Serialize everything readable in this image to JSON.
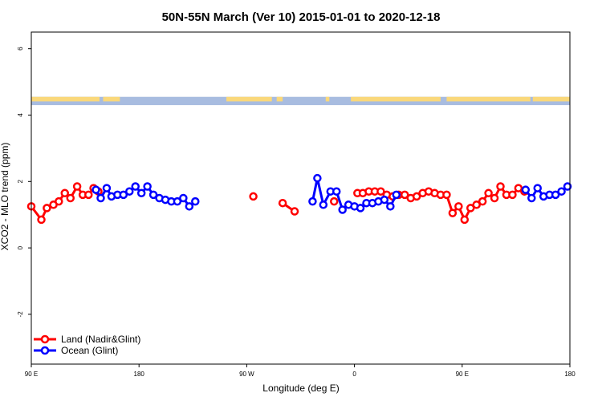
{
  "chart_data": {
    "type": "line",
    "title": "50N-55N March (Ver 10)   2015-01-01 to 2020-12-18",
    "xlabel": "Longitude (deg E)",
    "ylabel": "XCO2 - MLO trend (ppm)",
    "xlim": [
      90,
      540
    ],
    "ylim": [
      -3.5,
      6.5
    ],
    "x_ticks": [
      {
        "value": 90,
        "label": "90 E"
      },
      {
        "value": 180,
        "label": "180"
      },
      {
        "value": 270,
        "label": "90 W"
      },
      {
        "value": 360,
        "label": "0"
      },
      {
        "value": 450,
        "label": "90 E"
      },
      {
        "value": 540,
        "label": "180"
      }
    ],
    "y_ticks": [
      {
        "value": -2,
        "label": "-2"
      },
      {
        "value": 0,
        "label": "0"
      },
      {
        "value": 2,
        "label": "2"
      },
      {
        "value": 4,
        "label": "4"
      },
      {
        "value": 6,
        "label": "6"
      }
    ],
    "grid": false,
    "legend_position": "bottom-left",
    "land_ocean_band": {
      "y_range": [
        4.3,
        4.55
      ],
      "land_color": "#FAD87A",
      "ocean_color": "#A8BCE0"
    },
    "series": [
      {
        "name": "Land (Nadir&Glint)",
        "color": "#FF0000",
        "x": [
          90,
          98.4,
          103,
          108.5,
          113,
          118,
          122.7,
          128.3,
          133,
          137.8,
          142,
          146,
          null,
          275.5,
          null,
          300,
          310,
          null,
          343,
          null,
          362.5,
          367,
          372,
          377,
          382,
          387,
          392,
          397,
          402,
          407,
          412,
          417,
          422,
          427,
          432,
          437,
          442,
          447,
          452,
          457,
          462,
          467,
          472,
          477,
          482,
          487,
          492,
          497,
          502
        ],
        "y": [
          1.25,
          0.85,
          1.2,
          1.3,
          1.4,
          1.65,
          1.5,
          1.85,
          1.6,
          1.6,
          1.8,
          1.7,
          null,
          1.55,
          null,
          1.35,
          1.1,
          null,
          1.4,
          null,
          1.65,
          1.65,
          1.7,
          1.7,
          1.7,
          1.6,
          1.55,
          1.6,
          1.6,
          1.5,
          1.55,
          1.65,
          1.7,
          1.65,
          1.6,
          1.6,
          1.05,
          1.25,
          0.85,
          1.2,
          1.3,
          1.4,
          1.65,
          1.5,
          1.85,
          1.6,
          1.6,
          1.8,
          1.7
        ]
      },
      {
        "name": "Ocean (Glint)",
        "color": "#0000FF",
        "x": [
          144,
          148,
          153,
          157,
          162,
          167,
          172,
          177,
          182,
          187,
          192,
          197,
          202,
          207,
          212,
          217,
          222,
          227,
          null,
          325,
          329,
          334,
          340,
          345,
          350,
          355,
          360,
          365,
          370,
          375,
          380,
          385,
          390,
          395,
          null,
          503,
          508,
          513,
          518,
          523,
          528,
          533,
          538
        ],
        "y": [
          1.75,
          1.5,
          1.8,
          1.55,
          1.6,
          1.6,
          1.7,
          1.85,
          1.65,
          1.85,
          1.6,
          1.5,
          1.45,
          1.4,
          1.4,
          1.5,
          1.25,
          1.4,
          null,
          1.4,
          2.1,
          1.3,
          1.7,
          1.7,
          1.15,
          1.3,
          1.25,
          1.2,
          1.35,
          1.35,
          1.4,
          1.45,
          1.25,
          1.6,
          null,
          1.75,
          1.5,
          1.8,
          1.55,
          1.6,
          1.6,
          1.7,
          1.85
        ]
      }
    ]
  }
}
